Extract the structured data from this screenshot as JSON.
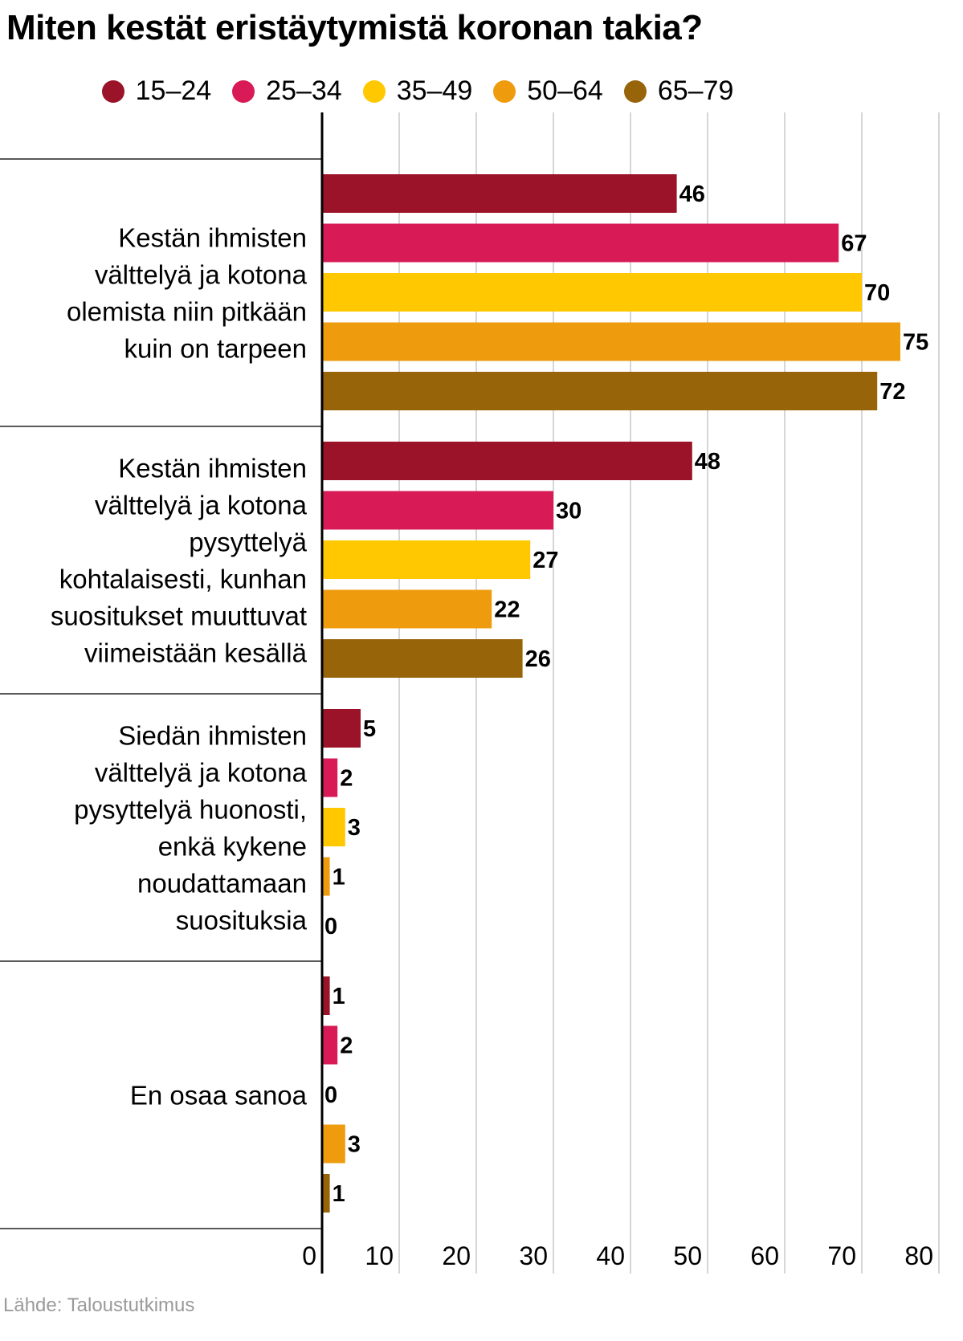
{
  "chart_data": {
    "type": "bar",
    "orientation": "horizontal",
    "title": "Miten kestät eristäytymistä koronan takia?",
    "source": "Lähde: Taloustutkimus",
    "xlim": [
      0,
      80
    ],
    "xticks": [
      "0",
      "10",
      "20",
      "30",
      "40",
      "50",
      "60",
      "70",
      "80"
    ],
    "grid": true,
    "legend_position": "top",
    "categories": [
      [
        "Kestän ihmisten",
        "välttelyä ja kotona",
        "olemista niin pitkään",
        "kuin on tarpeen"
      ],
      [
        "Kestän ihmisten",
        "välttelyä ja kotona",
        "pysyttelyä",
        "kohtalaisesti, kunhan",
        "suositukset muuttuvat",
        "viimeistään kesällä"
      ],
      [
        "Siedän ihmisten",
        "välttelyä ja kotona",
        "pysyttelyä huonosti,",
        "enkä kykene",
        "noudattamaan",
        "suosituksia"
      ],
      [
        "En osaa sanoa"
      ]
    ],
    "series": [
      {
        "name": "15–24",
        "color": "#9b1328",
        "values": [
          46,
          48,
          5,
          1
        ]
      },
      {
        "name": "25–34",
        "color": "#d81b57",
        "values": [
          67,
          30,
          2,
          2
        ]
      },
      {
        "name": "35–49",
        "color": "#ffc800",
        "values": [
          70,
          27,
          3,
          0
        ]
      },
      {
        "name": "50–64",
        "color": "#ee9c0d",
        "values": [
          75,
          22,
          1,
          3
        ]
      },
      {
        "name": "65–79",
        "color": "#98640a",
        "values": [
          72,
          26,
          0,
          1
        ]
      }
    ]
  }
}
